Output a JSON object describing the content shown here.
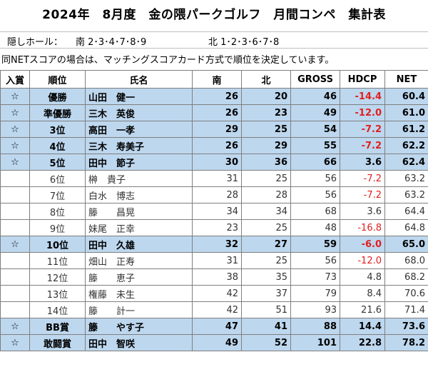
{
  "title": "2024年　8月度　金の隈パークゴルフ　月間コンペ　集計表",
  "hidden_holes": {
    "label": "隠しホール：",
    "south": "南 2･3･4･7･8･9",
    "north": "北 1･2･3･6･7･8"
  },
  "note": "同NETスコアの場合は、マッチングスコアカード方式で順位を決定しています。",
  "columns": {
    "prize": "入賞",
    "rank": "順位",
    "name": "氏名",
    "south": "南",
    "north": "北",
    "gross": "GROSS",
    "hdcp": "HDCP",
    "net": "NET"
  },
  "rows": [
    {
      "prize": "☆",
      "rank": "優勝",
      "name": "山田　健一",
      "south": "26",
      "north": "20",
      "gross": "46",
      "hdcp": "-14.4",
      "net": "60.4",
      "highlight": true
    },
    {
      "prize": "☆",
      "rank": "準優勝",
      "name": "三木　英俊",
      "south": "26",
      "north": "23",
      "gross": "49",
      "hdcp": "-12.0",
      "net": "61.0",
      "highlight": true
    },
    {
      "prize": "☆",
      "rank": "3位",
      "name": "高田　一孝",
      "south": "29",
      "north": "25",
      "gross": "54",
      "hdcp": "-7.2",
      "net": "61.2",
      "highlight": true
    },
    {
      "prize": "☆",
      "rank": "4位",
      "name": "三木　寿美子",
      "south": "26",
      "north": "29",
      "gross": "55",
      "hdcp": "-7.2",
      "net": "62.2",
      "highlight": true
    },
    {
      "prize": "☆",
      "rank": "5位",
      "name": "田中　節子",
      "south": "30",
      "north": "36",
      "gross": "66",
      "hdcp": "3.6",
      "net": "62.4",
      "highlight": true
    },
    {
      "prize": "",
      "rank": "6位",
      "name": "榊　貴子",
      "south": "31",
      "north": "25",
      "gross": "56",
      "hdcp": "-7.2",
      "net": "63.2",
      "highlight": false
    },
    {
      "prize": "",
      "rank": "7位",
      "name": "白水　博志",
      "south": "28",
      "north": "28",
      "gross": "56",
      "hdcp": "-7.2",
      "net": "63.2",
      "highlight": false
    },
    {
      "prize": "",
      "rank": "8位",
      "name": "籐　　昌晃",
      "south": "34",
      "north": "34",
      "gross": "68",
      "hdcp": "3.6",
      "net": "64.4",
      "highlight": false
    },
    {
      "prize": "",
      "rank": "9位",
      "name": "妹尾　正幸",
      "south": "23",
      "north": "25",
      "gross": "48",
      "hdcp": "-16.8",
      "net": "64.8",
      "highlight": false
    },
    {
      "prize": "☆",
      "rank": "10位",
      "name": "田中　久雄",
      "south": "32",
      "north": "27",
      "gross": "59",
      "hdcp": "-6.0",
      "net": "65.0",
      "highlight": true
    },
    {
      "prize": "",
      "rank": "11位",
      "name": "畑山　正寿",
      "south": "31",
      "north": "25",
      "gross": "56",
      "hdcp": "-12.0",
      "net": "68.0",
      "highlight": false
    },
    {
      "prize": "",
      "rank": "12位",
      "name": "籐　　恵子",
      "south": "38",
      "north": "35",
      "gross": "73",
      "hdcp": "4.8",
      "net": "68.2",
      "highlight": false
    },
    {
      "prize": "",
      "rank": "13位",
      "name": "権藤　未生",
      "south": "42",
      "north": "37",
      "gross": "79",
      "hdcp": "8.4",
      "net": "70.6",
      "highlight": false
    },
    {
      "prize": "",
      "rank": "14位",
      "name": "籐　　計一",
      "south": "42",
      "north": "51",
      "gross": "93",
      "hdcp": "21.6",
      "net": "71.4",
      "highlight": false
    },
    {
      "prize": "☆",
      "rank": "BB賞",
      "name": "籐　　やす子",
      "south": "47",
      "north": "41",
      "gross": "88",
      "hdcp": "14.4",
      "net": "73.6",
      "highlight": true
    },
    {
      "prize": "☆",
      "rank": "敢闘賞",
      "name": "田中　智咲",
      "south": "49",
      "north": "52",
      "gross": "101",
      "hdcp": "22.8",
      "net": "78.2",
      "highlight": true
    }
  ],
  "colors": {
    "highlight_row": "#bdd7ee",
    "negative": "#e02020"
  }
}
